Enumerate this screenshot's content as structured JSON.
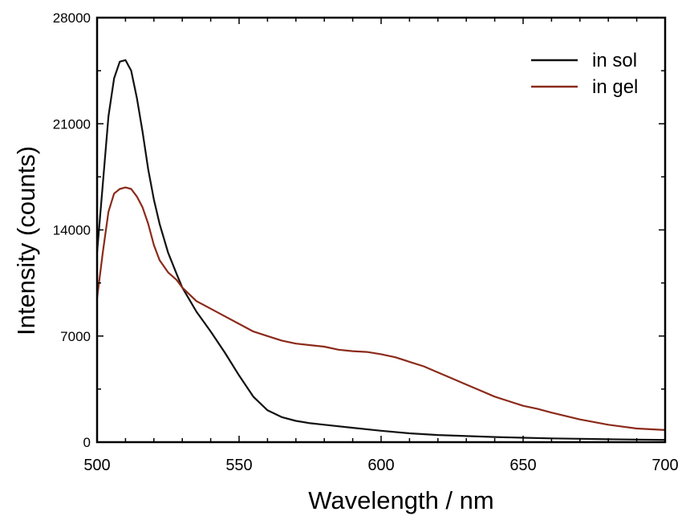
{
  "chart_data": {
    "type": "line",
    "title": "",
    "xlabel": "Wavelength / nm",
    "ylabel": "Intensity (counts)",
    "xlim": [
      500,
      700
    ],
    "ylim": [
      0,
      28000
    ],
    "x_ticks": [
      500,
      550,
      600,
      650,
      700
    ],
    "y_ticks": [
      0,
      7000,
      14000,
      21000,
      28000
    ],
    "grid": false,
    "legend_position": "top-right",
    "series": [
      {
        "name": "in sol",
        "color": "#111111",
        "x": [
          500,
          502,
          504,
          506,
          508,
          510,
          512,
          514,
          516,
          518,
          520,
          522,
          525,
          528,
          530,
          535,
          540,
          545,
          550,
          555,
          560,
          565,
          570,
          575,
          580,
          590,
          600,
          610,
          620,
          630,
          640,
          650,
          660,
          670,
          680,
          690,
          700
        ],
        "y": [
          12500,
          17000,
          21500,
          24000,
          25100,
          25200,
          24500,
          22700,
          20500,
          18000,
          16000,
          14400,
          12500,
          11100,
          10200,
          8600,
          7300,
          5900,
          4400,
          3000,
          2100,
          1650,
          1400,
          1250,
          1150,
          950,
          750,
          580,
          470,
          400,
          340,
          290,
          250,
          220,
          190,
          170,
          150
        ]
      },
      {
        "name": "in gel",
        "color": "#8b2a1a",
        "x": [
          500,
          502,
          504,
          506,
          508,
          510,
          512,
          514,
          516,
          518,
          520,
          522,
          525,
          528,
          530,
          535,
          540,
          545,
          550,
          555,
          560,
          565,
          570,
          575,
          580,
          585,
          590,
          595,
          600,
          605,
          610,
          615,
          620,
          625,
          630,
          635,
          640,
          645,
          650,
          655,
          660,
          670,
          680,
          690,
          700
        ],
        "y": [
          9500,
          12500,
          15200,
          16400,
          16700,
          16800,
          16700,
          16200,
          15500,
          14400,
          13000,
          12000,
          11200,
          10700,
          10200,
          9300,
          8800,
          8300,
          7800,
          7300,
          7000,
          6700,
          6500,
          6400,
          6300,
          6100,
          6000,
          5950,
          5800,
          5600,
          5300,
          5000,
          4600,
          4200,
          3800,
          3400,
          3000,
          2700,
          2400,
          2200,
          1950,
          1500,
          1150,
          900,
          800
        ]
      }
    ]
  }
}
